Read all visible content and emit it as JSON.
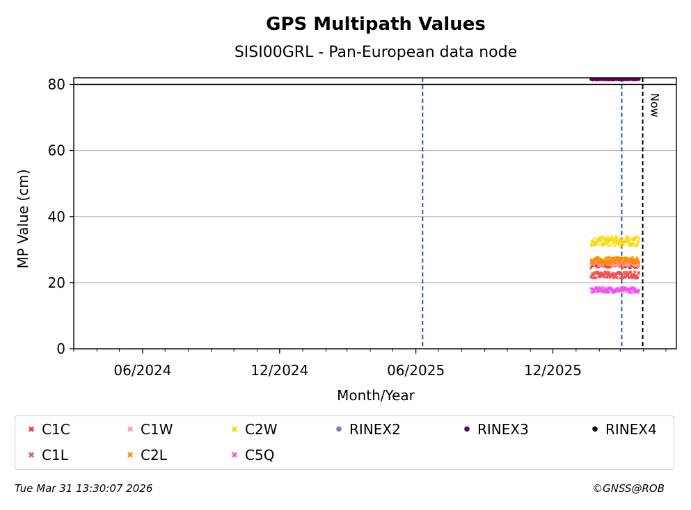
{
  "footer": {
    "timestamp": "Tue Mar 31 13:30:07 2026",
    "copyright": "©GNSS@ROB"
  },
  "chart_data": {
    "type": "scatter",
    "title": "GPS Multipath Values",
    "subtitle": "SISI00GRL - Pan-European data node",
    "xlabel": "Month/Year",
    "ylabel": "MP Value (cm)",
    "xlim": [
      "2024-03-01",
      "2026-05-15"
    ],
    "ylim": [
      0,
      82
    ],
    "x_ticks": [
      {
        "date": "2024-06-01",
        "label": "06/2024"
      },
      {
        "date": "2024-12-01",
        "label": "12/2024"
      },
      {
        "date": "2025-06-01",
        "label": "06/2025"
      },
      {
        "date": "2025-12-01",
        "label": "12/2025"
      }
    ],
    "y_ticks": [
      0,
      20,
      40,
      60,
      80
    ],
    "grid": "horizontal",
    "reference_line_y": 80,
    "vertical_lines": [
      {
        "date": "2025-06-10",
        "style": "dashed",
        "color": "#1f5fa8"
      },
      {
        "date": "2026-03-03",
        "style": "dashed",
        "color": "#1f5fa8"
      },
      {
        "date": "2026-03-31",
        "style": "dashed",
        "color": "#000000",
        "label": "Now"
      }
    ],
    "data_range": [
      "2026-01-21",
      "2026-03-26"
    ],
    "series": [
      {
        "name": "C1C",
        "marker": "x",
        "color": "#e8382f",
        "level": 25.5,
        "spread": 1.0
      },
      {
        "name": "C1L",
        "marker": "x",
        "color": "#f05050",
        "level": 22.3,
        "spread": 1.0
      },
      {
        "name": "C1W",
        "marker": "x",
        "color": "#ff9999",
        "level": 25.9,
        "spread": 0.9
      },
      {
        "name": "C2L",
        "marker": "x",
        "color": "#ff8c00",
        "level": 26.8,
        "spread": 1.0
      },
      {
        "name": "C2W",
        "marker": "x",
        "color": "#ffd700",
        "level": 32.5,
        "spread": 1.4
      },
      {
        "name": "C5Q",
        "marker": "x",
        "color": "#ee55ee",
        "level": 17.8,
        "spread": 0.8
      },
      {
        "name": "RINEX2",
        "marker": "o",
        "color": "#7b7bb9",
        "level": null
      },
      {
        "name": "RINEX3",
        "marker": "o",
        "color": "#6b0058",
        "level": 81.5,
        "spread": 0.1
      },
      {
        "name": "RINEX4",
        "marker": "o",
        "color": "#1a0010",
        "level": null
      }
    ],
    "legend_position": "bottom",
    "legend_order": [
      "C1C",
      "C1W",
      "C2W",
      "RINEX2",
      "RINEX3",
      "RINEX4",
      "C1L",
      "C2L",
      "C5Q"
    ]
  }
}
